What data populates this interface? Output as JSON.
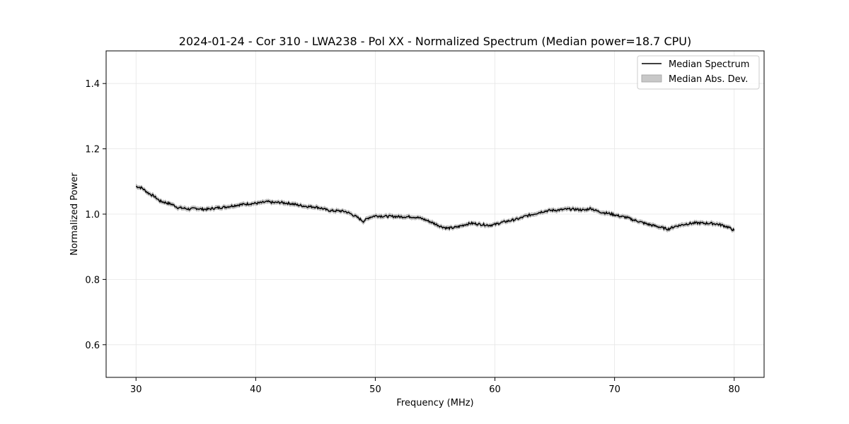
{
  "chart_data": {
    "type": "line",
    "title": "2024-01-24 - Cor 310 - LWA238 - Pol XX - Normalized Spectrum (Median power=18.7 CPU)",
    "xlabel": "Frequency (MHz)",
    "ylabel": "Normalized Power",
    "xlim": [
      27.5,
      82.5
    ],
    "ylim": [
      0.5,
      1.5
    ],
    "xticks": [
      30,
      40,
      50,
      60,
      70,
      80
    ],
    "yticks": [
      0.6,
      0.8,
      1.0,
      1.2,
      1.4
    ],
    "xtick_labels": [
      "30",
      "40",
      "50",
      "60",
      "70",
      "80"
    ],
    "ytick_labels": [
      "0.6",
      "0.8",
      "1.0",
      "1.2",
      "1.4"
    ],
    "grid": true,
    "legend_position": "top-right",
    "series": [
      {
        "name": "Median Spectrum",
        "color": "#000000",
        "x": [
          30,
          30.5,
          31,
          31.5,
          32,
          32.5,
          33,
          33.5,
          34,
          34.5,
          35,
          35.5,
          36,
          36.5,
          37,
          37.5,
          38,
          38.5,
          39,
          39.5,
          40,
          40.5,
          41,
          41.5,
          42,
          42.5,
          43,
          43.5,
          44,
          44.5,
          45,
          45.5,
          46,
          46.5,
          47,
          47.5,
          48,
          48.5,
          49,
          49.5,
          50,
          50.5,
          51,
          51.5,
          52,
          52.5,
          53,
          53.5,
          54,
          54.5,
          55,
          55.5,
          56,
          56.5,
          57,
          57.5,
          58,
          58.5,
          59,
          59.5,
          60,
          60.5,
          61,
          61.5,
          62,
          62.5,
          63,
          63.5,
          64,
          64.5,
          65,
          65.5,
          66,
          66.5,
          67,
          67.5,
          68,
          68.5,
          69,
          69.5,
          70,
          70.5,
          71,
          71.5,
          72,
          72.5,
          73,
          73.5,
          74,
          74.5,
          75,
          75.5,
          76,
          76.5,
          77,
          77.5,
          78,
          78.5,
          79,
          79.5,
          80
        ],
        "y": [
          1.085,
          1.08,
          1.065,
          1.055,
          1.04,
          1.035,
          1.03,
          1.02,
          1.018,
          1.015,
          1.018,
          1.015,
          1.015,
          1.018,
          1.02,
          1.022,
          1.025,
          1.028,
          1.03,
          1.032,
          1.033,
          1.035,
          1.038,
          1.035,
          1.036,
          1.034,
          1.032,
          1.028,
          1.025,
          1.023,
          1.022,
          1.018,
          1.012,
          1.01,
          1.01,
          1.008,
          1.0,
          0.99,
          0.978,
          0.99,
          0.995,
          0.994,
          0.993,
          0.993,
          0.992,
          0.992,
          0.992,
          0.99,
          0.985,
          0.978,
          0.97,
          0.962,
          0.957,
          0.958,
          0.962,
          0.968,
          0.972,
          0.97,
          0.968,
          0.966,
          0.968,
          0.974,
          0.978,
          0.982,
          0.986,
          0.993,
          0.998,
          1.003,
          1.008,
          1.011,
          1.012,
          1.013,
          1.015,
          1.015,
          1.014,
          1.012,
          1.018,
          1.01,
          1.005,
          1.002,
          0.998,
          0.993,
          0.99,
          0.983,
          0.978,
          0.972,
          0.967,
          0.963,
          0.958,
          0.954,
          0.962,
          0.966,
          0.97,
          0.972,
          0.973,
          0.972,
          0.972,
          0.97,
          0.966,
          0.96,
          0.95
        ]
      }
    ],
    "band": {
      "name": "Median Abs. Dev.",
      "color": "#c8c8c8",
      "half_width": 0.005
    }
  }
}
